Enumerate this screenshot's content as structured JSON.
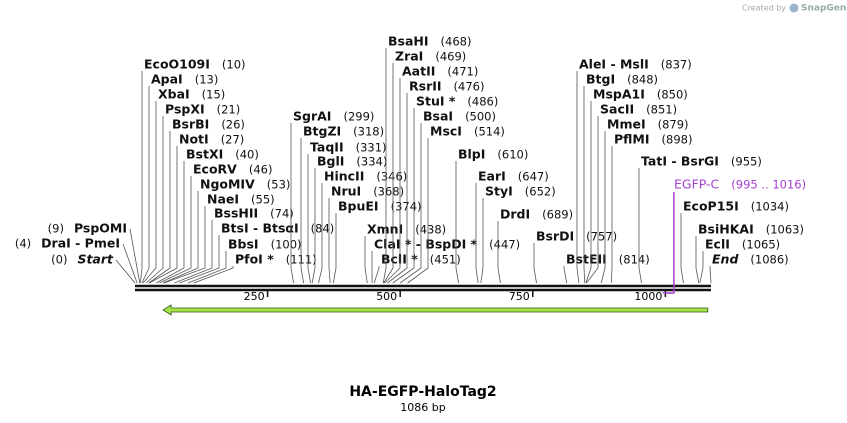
{
  "header": {
    "watermark_prefix": "Created by",
    "watermark_brand": "SnapGene"
  },
  "map": {
    "title": "HA-EGFP-HaloTag2",
    "length_label": "1086 bp",
    "length": 1086,
    "ruler_ticks": [
      250,
      500,
      750,
      1000
    ],
    "sites": [
      {
        "name": "Start",
        "position": 0,
        "position_label": "(0)"
      },
      {
        "name": "DraI  -  PmeI",
        "position": 4,
        "position_label": "(4)"
      },
      {
        "name": "PspOMI",
        "position": 9,
        "position_label": "(9)"
      },
      {
        "name": "EcoO109I",
        "position": 10,
        "position_label": "(10)"
      },
      {
        "name": "ApaI",
        "position": 13,
        "position_label": "(13)"
      },
      {
        "name": "XbaI",
        "position": 15,
        "position_label": "(15)"
      },
      {
        "name": "PspXI",
        "position": 21,
        "position_label": "(21)"
      },
      {
        "name": "BsrBI",
        "position": 26,
        "position_label": "(26)"
      },
      {
        "name": "NotI",
        "position": 27,
        "position_label": "(27)"
      },
      {
        "name": "BstXI",
        "position": 40,
        "position_label": "(40)"
      },
      {
        "name": "EcoRV",
        "position": 46,
        "position_label": "(46)"
      },
      {
        "name": "NgoMIV",
        "position": 53,
        "position_label": "(53)"
      },
      {
        "name": "NaeI",
        "position": 55,
        "position_label": "(55)"
      },
      {
        "name": "BssHII",
        "position": 74,
        "position_label": "(74)"
      },
      {
        "name": "BtsI  -  BtsαI",
        "position": 84,
        "position_label": "(84)"
      },
      {
        "name": "BbsI",
        "position": 100,
        "position_label": "(100)"
      },
      {
        "name": "PfoI *",
        "position": 111,
        "position_label": "(111)"
      },
      {
        "name": "SgrAI",
        "position": 299,
        "position_label": "(299)"
      },
      {
        "name": "BtgZI",
        "position": 318,
        "position_label": "(318)"
      },
      {
        "name": "TaqII",
        "position": 331,
        "position_label": "(331)"
      },
      {
        "name": "BglI",
        "position": 334,
        "position_label": "(334)"
      },
      {
        "name": "HincII",
        "position": 346,
        "position_label": "(346)"
      },
      {
        "name": "NruI",
        "position": 368,
        "position_label": "(368)"
      },
      {
        "name": "BpuEI",
        "position": 374,
        "position_label": "(374)"
      },
      {
        "name": "XmnI",
        "position": 438,
        "position_label": "(438)"
      },
      {
        "name": "ClaI *  -  BspDI *",
        "position": 447,
        "position_label": "(447)"
      },
      {
        "name": "BclI *",
        "position": 451,
        "position_label": "(451)"
      },
      {
        "name": "BsaHI",
        "position": 468,
        "position_label": "(468)"
      },
      {
        "name": "ZraI",
        "position": 469,
        "position_label": "(469)"
      },
      {
        "name": "AatII",
        "position": 471,
        "position_label": "(471)"
      },
      {
        "name": "RsrII",
        "position": 476,
        "position_label": "(476)"
      },
      {
        "name": "StuI *",
        "position": 486,
        "position_label": "(486)"
      },
      {
        "name": "BsaI",
        "position": 500,
        "position_label": "(500)"
      },
      {
        "name": "MscI",
        "position": 514,
        "position_label": "(514)"
      },
      {
        "name": "BlpI",
        "position": 610,
        "position_label": "(610)"
      },
      {
        "name": "EarI",
        "position": 647,
        "position_label": "(647)"
      },
      {
        "name": "StyI",
        "position": 652,
        "position_label": "(652)"
      },
      {
        "name": "DrdI",
        "position": 689,
        "position_label": "(689)"
      },
      {
        "name": "BsrDI",
        "position": 757,
        "position_label": "(757)"
      },
      {
        "name": "BstEII",
        "position": 814,
        "position_label": "(814)"
      },
      {
        "name": "AleI  -  MslI",
        "position": 837,
        "position_label": "(837)"
      },
      {
        "name": "BtgI",
        "position": 848,
        "position_label": "(848)"
      },
      {
        "name": "MspA1I",
        "position": 850,
        "position_label": "(850)"
      },
      {
        "name": "SacII",
        "position": 851,
        "position_label": "(851)"
      },
      {
        "name": "MmeI",
        "position": 879,
        "position_label": "(879)"
      },
      {
        "name": "PflMI",
        "position": 898,
        "position_label": "(898)"
      },
      {
        "name": "TatI  -  BsrGI",
        "position": 955,
        "position_label": "(955)"
      },
      {
        "name": "EcoP15I",
        "position": 1034,
        "position_label": "(1034)"
      },
      {
        "name": "BsiHKAI",
        "position": 1063,
        "position_label": "(1063)"
      },
      {
        "name": "EclI",
        "position": 1065,
        "position_label": "(1065)"
      },
      {
        "name": "End",
        "position": 1086,
        "position_label": "(1086)"
      }
    ],
    "features": [
      {
        "name": "EGFP-C",
        "start": 995,
        "end": 1016,
        "range_label": "(995 .. 1016)",
        "color": "#a43fd1"
      }
    ],
    "arrow": {
      "start": 53,
      "end": 1080,
      "color": "#a6e34a"
    }
  }
}
